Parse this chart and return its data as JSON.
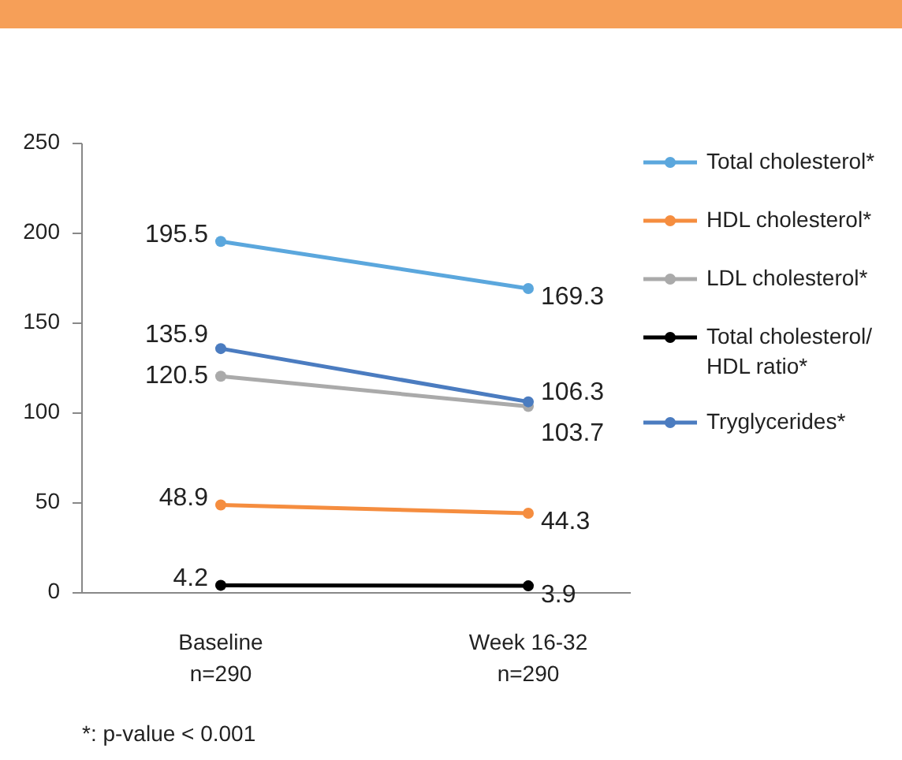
{
  "chart_data": {
    "type": "line",
    "categories": [
      "Baseline\nn=290",
      "Week 16-32\nn=290"
    ],
    "series": [
      {
        "name": "Total cholesterol*",
        "color": "#5ba7dd",
        "values": [
          195.5,
          169.3
        ]
      },
      {
        "name": "HDL cholesterol*",
        "color": "#f58d3f",
        "values": [
          48.9,
          44.3
        ]
      },
      {
        "name": "LDL cholesterol*",
        "color": "#aaaaaa",
        "values": [
          120.5,
          103.7
        ]
      },
      {
        "name": "Total cholesterol/\nHDL ratio*",
        "color": "#000000",
        "values": [
          4.2,
          3.9
        ]
      },
      {
        "name": "Tryglycerides*",
        "color": "#4b7cc0",
        "values": [
          135.9,
          106.3
        ]
      }
    ],
    "ylim": [
      0,
      250
    ],
    "yticks": [
      0,
      50,
      100,
      150,
      200,
      250
    ],
    "grid": false,
    "legend": "right",
    "marker": "circle",
    "line_style": "solid",
    "data_labels": true,
    "annotations": [
      "*: p-value < 0.001"
    ]
  }
}
